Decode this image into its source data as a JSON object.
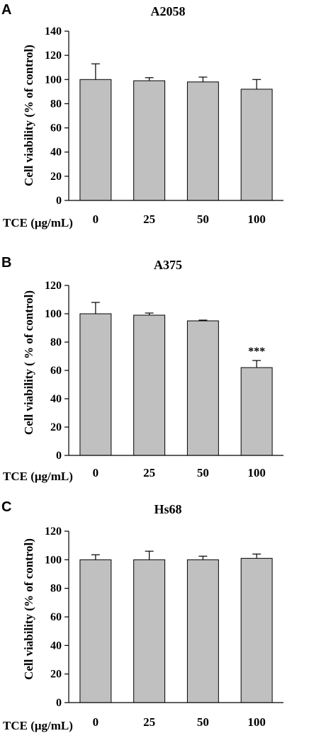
{
  "chart_data": [
    {
      "type": "bar",
      "panel_label": "A",
      "title": "A2058",
      "ylabel": "Cell viability (% of control)",
      "xlabel": "TCE (μg/mL)",
      "categories": [
        "0",
        "25",
        "50",
        "100"
      ],
      "values": [
        100,
        99,
        98,
        92
      ],
      "errors": [
        13,
        2.5,
        4,
        8
      ],
      "annotations": [
        "",
        "",
        "",
        ""
      ],
      "ylim": [
        0,
        140
      ],
      "yticks": [
        0,
        20,
        40,
        60,
        80,
        100,
        120,
        140
      ],
      "bar_color": "#c0c0c0"
    },
    {
      "type": "bar",
      "panel_label": "B",
      "title": "A375",
      "ylabel": "Cell viability ( % of control)",
      "xlabel": "TCE (μg/mL)",
      "categories": [
        "0",
        "25",
        "50",
        "100"
      ],
      "values": [
        100,
        99,
        95,
        62
      ],
      "errors": [
        8,
        1.5,
        0.5,
        5
      ],
      "annotations": [
        "",
        "",
        "",
        "***"
      ],
      "ylim": [
        0,
        120
      ],
      "yticks": [
        0,
        20,
        40,
        60,
        80,
        100,
        120
      ],
      "bar_color": "#c0c0c0"
    },
    {
      "type": "bar",
      "panel_label": "C",
      "title": "Hs68",
      "ylabel": "Cell viability (% of control)",
      "xlabel": "TCE (μg/mL)",
      "categories": [
        "0",
        "25",
        "50",
        "100"
      ],
      "values": [
        100,
        100,
        100,
        101
      ],
      "errors": [
        3.5,
        6,
        2.5,
        3
      ],
      "annotations": [
        "",
        "",
        "",
        ""
      ],
      "ylim": [
        0,
        120
      ],
      "yticks": [
        0,
        20,
        40,
        60,
        80,
        100,
        120
      ],
      "bar_color": "#c0c0c0"
    }
  ]
}
